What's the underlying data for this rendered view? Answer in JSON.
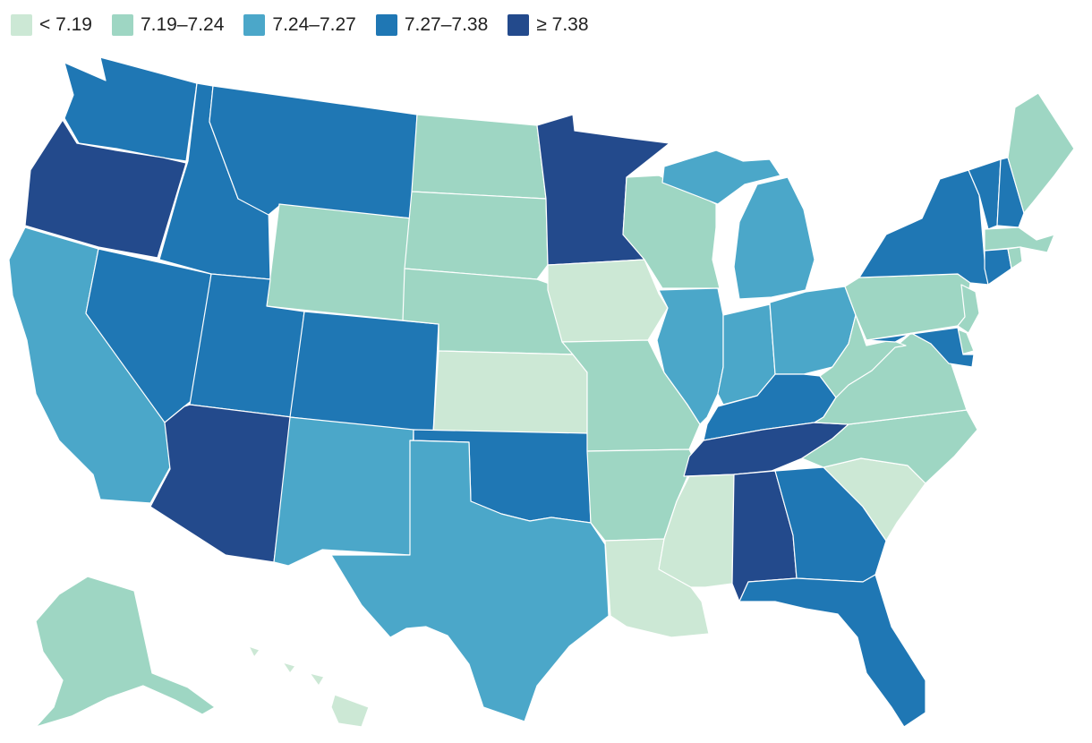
{
  "legend": [
    {
      "label": "< 7.19",
      "color": "#cce8d5",
      "bin": 0
    },
    {
      "label": "7.19–7.24",
      "color": "#9ed6c3",
      "bin": 1
    },
    {
      "label": "7.24–7.27",
      "color": "#4ba7c9",
      "bin": 2
    },
    {
      "label": "7.27–7.38",
      "color": "#1f77b4",
      "bin": 3
    },
    {
      "label": "≥ 7.38",
      "color": "#234a8c",
      "bin": 4
    }
  ],
  "chart_data": {
    "type": "choropleth",
    "region": "United States",
    "states": [
      {
        "state": "WA",
        "bin": 3
      },
      {
        "state": "OR",
        "bin": 4
      },
      {
        "state": "CA",
        "bin": 2
      },
      {
        "state": "NV",
        "bin": 3
      },
      {
        "state": "ID",
        "bin": 3
      },
      {
        "state": "MT",
        "bin": 3
      },
      {
        "state": "WY",
        "bin": 1
      },
      {
        "state": "UT",
        "bin": 3
      },
      {
        "state": "AZ",
        "bin": 4
      },
      {
        "state": "CO",
        "bin": 3
      },
      {
        "state": "NM",
        "bin": 2
      },
      {
        "state": "ND",
        "bin": 1
      },
      {
        "state": "SD",
        "bin": 1
      },
      {
        "state": "NE",
        "bin": 1
      },
      {
        "state": "KS",
        "bin": 0
      },
      {
        "state": "OK",
        "bin": 3
      },
      {
        "state": "TX",
        "bin": 2
      },
      {
        "state": "MN",
        "bin": 4
      },
      {
        "state": "IA",
        "bin": 0
      },
      {
        "state": "MO",
        "bin": 1
      },
      {
        "state": "AR",
        "bin": 1
      },
      {
        "state": "LA",
        "bin": 0
      },
      {
        "state": "WI",
        "bin": 1
      },
      {
        "state": "IL",
        "bin": 2
      },
      {
        "state": "MI",
        "bin": 2
      },
      {
        "state": "IN",
        "bin": 2
      },
      {
        "state": "OH",
        "bin": 2
      },
      {
        "state": "KY",
        "bin": 3
      },
      {
        "state": "TN",
        "bin": 4
      },
      {
        "state": "MS",
        "bin": 0
      },
      {
        "state": "AL",
        "bin": 4
      },
      {
        "state": "GA",
        "bin": 3
      },
      {
        "state": "FL",
        "bin": 3
      },
      {
        "state": "SC",
        "bin": 0
      },
      {
        "state": "NC",
        "bin": 1
      },
      {
        "state": "VA",
        "bin": 1
      },
      {
        "state": "WV",
        "bin": 1
      },
      {
        "state": "PA",
        "bin": 1
      },
      {
        "state": "NY",
        "bin": 3
      },
      {
        "state": "VT",
        "bin": 3
      },
      {
        "state": "NH",
        "bin": 3
      },
      {
        "state": "ME",
        "bin": 1
      },
      {
        "state": "MA",
        "bin": 1
      },
      {
        "state": "RI",
        "bin": 1
      },
      {
        "state": "CT",
        "bin": 3
      },
      {
        "state": "NJ",
        "bin": 1
      },
      {
        "state": "DE",
        "bin": 1
      },
      {
        "state": "MD",
        "bin": 3
      },
      {
        "state": "AK",
        "bin": 1
      },
      {
        "state": "HI",
        "bin": 0
      }
    ]
  }
}
